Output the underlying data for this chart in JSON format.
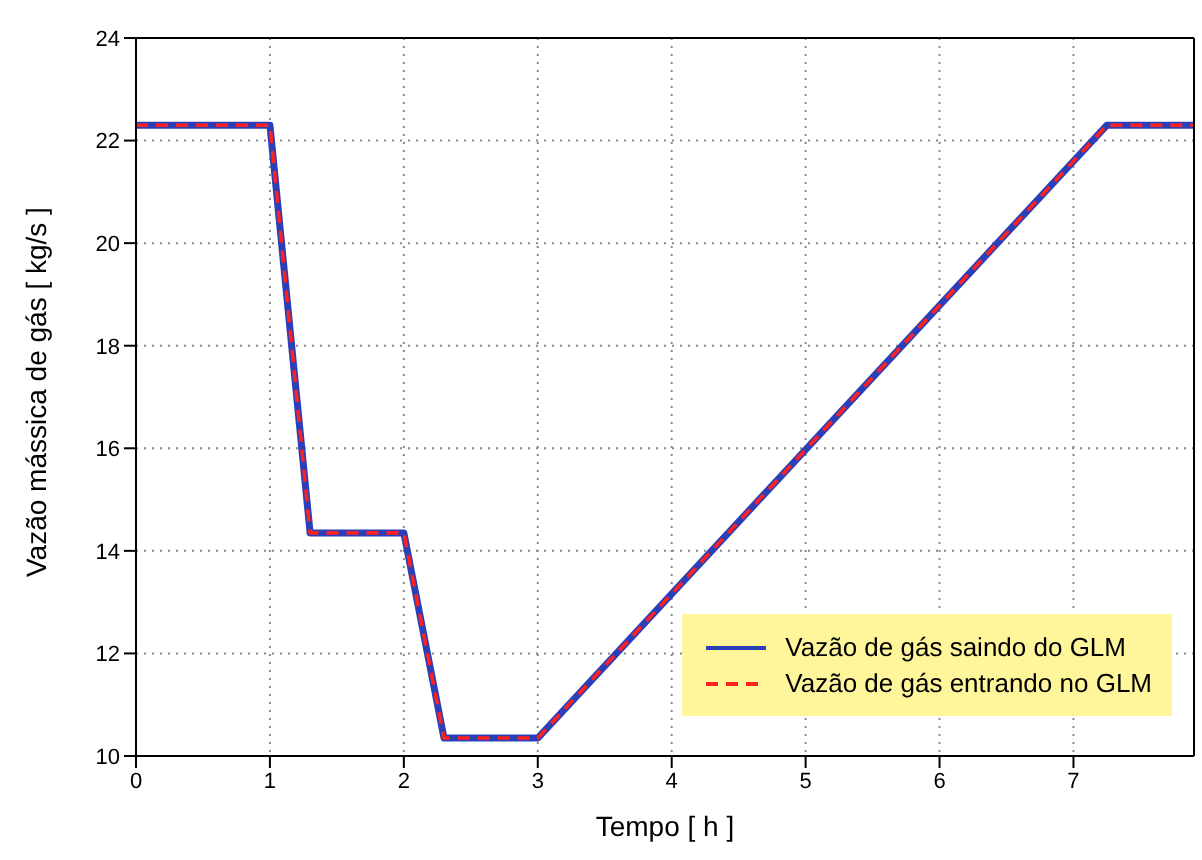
{
  "chart_data": {
    "type": "line",
    "xlabel": "Tempo [ h ]",
    "ylabel": "Vazão mássica de gás [ kg/s ]",
    "xlim": [
      0,
      7.9
    ],
    "xticks": [
      0,
      1,
      2,
      3,
      4,
      5,
      6,
      7
    ],
    "ylim": [
      10,
      24
    ],
    "yticks": [
      10,
      12,
      14,
      16,
      18,
      20,
      22,
      24
    ],
    "grid": true,
    "legend": "bottom right",
    "marker": "none",
    "series": [
      {
        "name": "Vazão de gás saindo do GLM",
        "color": "#2b3fb8",
        "line_style": "solid",
        "x": [
          0,
          1,
          1.3,
          2,
          2.3,
          3,
          7.25,
          7.9
        ],
        "values": [
          22.3,
          22.3,
          14.35,
          14.35,
          10.35,
          10.35,
          22.3,
          22.3
        ]
      },
      {
        "name": "Vazão de gás entrando no GLM",
        "color": "#ff2020",
        "line_style": "dashed",
        "x": [
          0,
          1,
          1.3,
          2,
          2.3,
          3,
          7.25,
          7.9
        ],
        "values": [
          22.3,
          22.3,
          14.35,
          14.35,
          10.35,
          10.35,
          22.3,
          22.3
        ]
      }
    ]
  }
}
